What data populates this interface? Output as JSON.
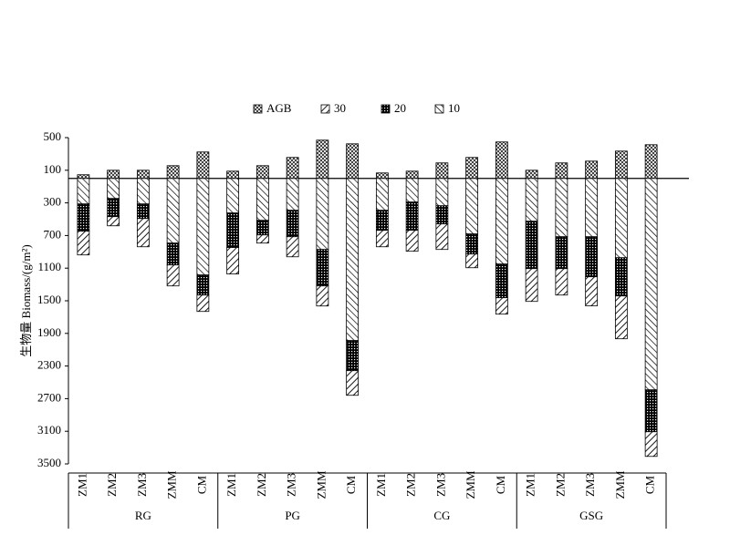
{
  "chart_data": {
    "type": "bar",
    "stacked": true,
    "y_label": "生物量 Biomass/(g/m²)",
    "categories": [
      "ZM1",
      "ZM2",
      "ZM3",
      "ZMM",
      "CM",
      "ZM1",
      "ZM2",
      "ZM3",
      "ZMM",
      "CM",
      "ZM1",
      "ZM2",
      "ZM3",
      "ZMM",
      "CM",
      "ZM1",
      "ZM2",
      "ZM3",
      "ZMM",
      "CM"
    ],
    "groups": [
      "RG",
      "PG",
      "CG",
      "GSG"
    ],
    "series": [
      {
        "name": "AGB",
        "color": "#000000",
        "pattern": "cross",
        "values": [
          45,
          100,
          100,
          156,
          324,
          89,
          156,
          257,
          469,
          424,
          67,
          89,
          190,
          257,
          447,
          100,
          190,
          212,
          335,
          413
        ]
      },
      {
        "name": "30",
        "color": "#000000",
        "pattern": "fwd",
        "values": [
          -290,
          -112,
          -346,
          -257,
          -201,
          -324,
          -100,
          -246,
          -246,
          -302,
          -201,
          -257,
          -313,
          -168,
          -201,
          -402,
          -324,
          -357,
          -525,
          -302
        ]
      },
      {
        "name": "20",
        "color": "#000000",
        "pattern": "dots",
        "values": [
          -335,
          -223,
          -179,
          -268,
          -246,
          -424,
          -179,
          -324,
          -447,
          -369,
          -246,
          -346,
          -223,
          -246,
          -413,
          -581,
          -391,
          -491,
          -469,
          -514
        ]
      },
      {
        "name": "10",
        "color": "#000000",
        "pattern": "back",
        "values": [
          -313,
          -246,
          -313,
          -793,
          -1184,
          -424,
          -514,
          -391,
          -871,
          -1988,
          -391,
          -290,
          -335,
          -681,
          -1050,
          -525,
          -715,
          -715,
          -972,
          -2592
        ]
      }
    ],
    "ylim": [
      -3500,
      500
    ],
    "yticks": [
      500,
      100,
      {
        "value": -300,
        "label": "300"
      },
      {
        "value": -700,
        "label": "700"
      },
      {
        "value": -1100,
        "label": "1100"
      },
      {
        "value": -1500,
        "label": "1500"
      },
      {
        "value": -1900,
        "label": "1900"
      },
      {
        "value": -2300,
        "label": "2300"
      },
      {
        "value": -2700,
        "label": "2700"
      },
      {
        "value": -3100,
        "label": "3100"
      },
      {
        "value": -3500,
        "label": "3500"
      }
    ],
    "legend": "top",
    "grid": false
  }
}
